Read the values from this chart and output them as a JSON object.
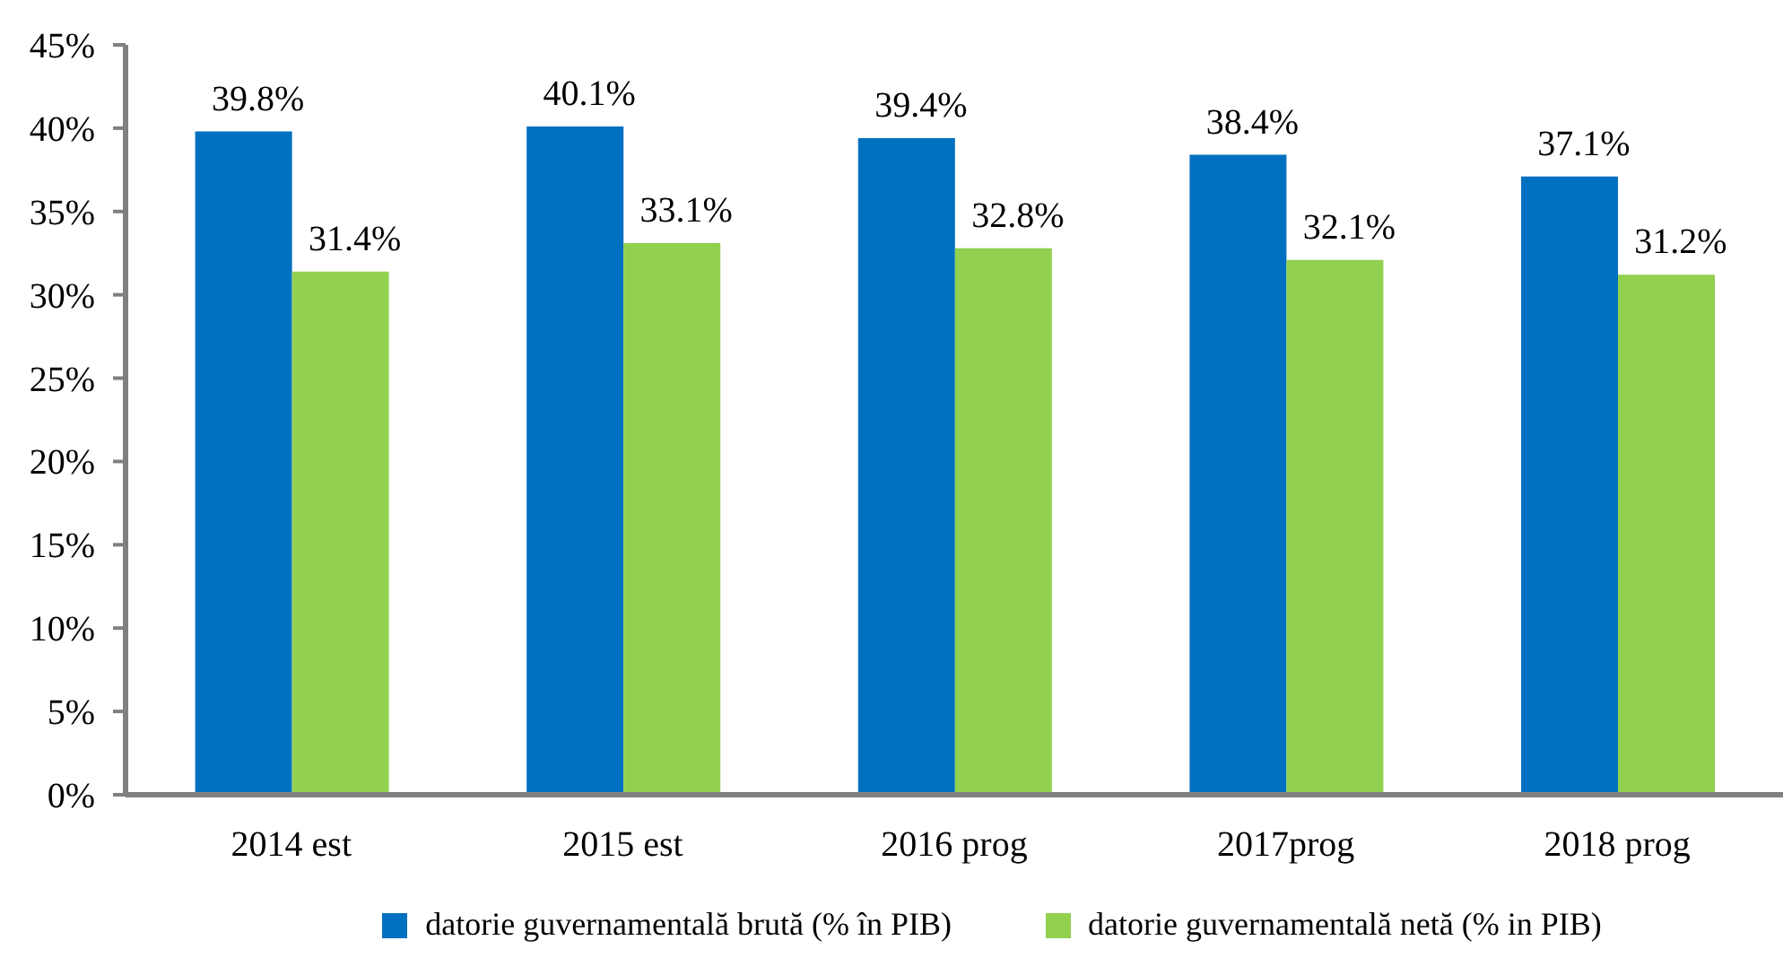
{
  "chart_data": {
    "type": "bar",
    "categories": [
      "2014 est",
      "2015 est",
      "2016 prog",
      "2017prog",
      "2018 prog"
    ],
    "series": [
      {
        "name": "datorie guvernamentală brută (% în PIB)",
        "color": "#0070c0",
        "values": [
          39.8,
          40.1,
          39.4,
          38.4,
          37.1
        ],
        "value_labels": [
          "39.8%",
          "40.1%",
          "39.4%",
          "38.4%",
          "37.1%"
        ]
      },
      {
        "name": "datorie guvernamentală netă (% in PIB)",
        "color": "#92d050",
        "values": [
          31.4,
          33.1,
          32.8,
          32.1,
          31.2
        ],
        "value_labels": [
          "31.4%",
          "33.1%",
          "32.8%",
          "32.1%",
          "31.2%"
        ]
      }
    ],
    "ylim": [
      0,
      45
    ],
    "yticks": [
      {
        "value": 0,
        "label": "0%"
      },
      {
        "value": 5,
        "label": "5%"
      },
      {
        "value": 10,
        "label": "10%"
      },
      {
        "value": 15,
        "label": "15%"
      },
      {
        "value": 20,
        "label": "20%"
      },
      {
        "value": 25,
        "label": "25%"
      },
      {
        "value": 30,
        "label": "30%"
      },
      {
        "value": 35,
        "label": "35%"
      },
      {
        "value": 40,
        "label": "40%"
      },
      {
        "value": 45,
        "label": "45%"
      }
    ],
    "legend": "bottom"
  }
}
